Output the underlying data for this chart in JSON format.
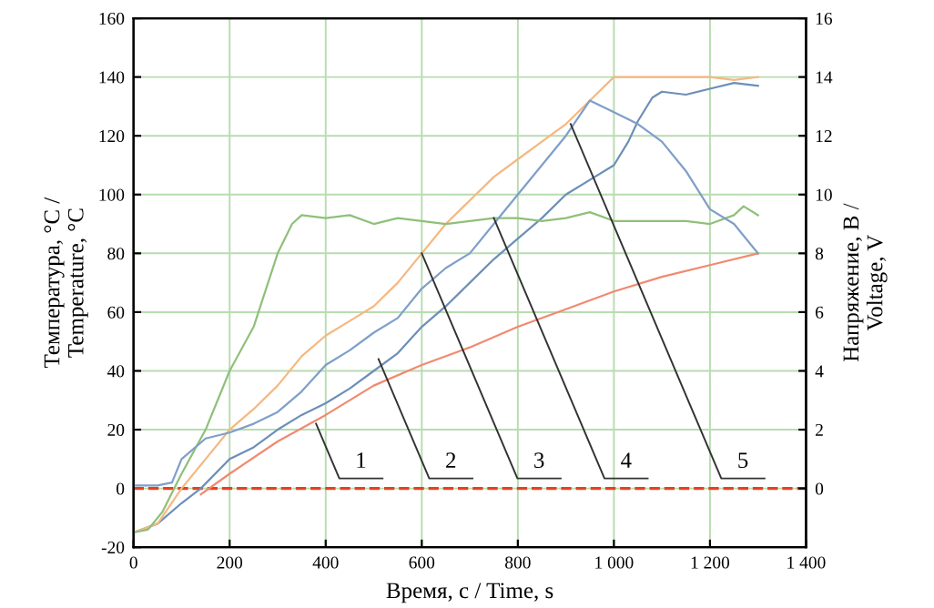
{
  "chart_data": {
    "type": "line",
    "xlabel": "Время, с / Time, s",
    "ylabel": "Температура, °C /\nTemperature, °C",
    "y2label": "Напряжение, В /\nVoltage, V",
    "xlim": [
      0,
      1400
    ],
    "xticks": [
      0,
      200,
      400,
      600,
      800,
      {
        "value": 1000,
        "label": "1 000"
      },
      {
        "value": 1200,
        "label": "1 200"
      },
      {
        "value": 1400,
        "label": "1 400"
      }
    ],
    "ylim": [
      -20,
      160
    ],
    "yticks": [
      -20,
      0,
      20,
      40,
      60,
      80,
      100,
      120,
      140,
      160
    ],
    "y2lim": [
      -2,
      16
    ],
    "y2ticks": [
      0,
      2,
      4,
      6,
      8,
      10,
      12,
      14,
      16
    ],
    "grid": true,
    "series": [
      {
        "color": "#f08a70",
        "x": [
          140,
          200,
          300,
          400,
          500,
          600,
          700,
          800,
          900,
          1000,
          1100,
          1200,
          1300
        ],
        "values": [
          -2,
          5,
          16,
          25,
          35,
          42,
          48,
          55,
          61,
          67,
          72,
          76,
          80
        ]
      },
      {
        "color": "#6d8fb8",
        "x": [
          0,
          50,
          100,
          140,
          200,
          250,
          300,
          350,
          400,
          450,
          500,
          550,
          600,
          650,
          700,
          750,
          800,
          850,
          900,
          950,
          1000,
          1030,
          1050,
          1080,
          1100,
          1150,
          1200,
          1250,
          1300
        ],
        "values": [
          -15,
          -12,
          -5,
          0,
          10,
          14,
          20,
          25,
          29,
          34,
          40,
          46,
          55,
          62,
          70,
          78,
          85,
          92,
          100,
          105,
          110,
          118,
          125,
          133,
          135,
          134,
          136,
          138,
          137
        ]
      },
      {
        "color": "#f5b880",
        "x": [
          0,
          50,
          100,
          150,
          200,
          250,
          300,
          350,
          400,
          450,
          500,
          550,
          600,
          650,
          700,
          750,
          800,
          850,
          900,
          950,
          1000,
          1050,
          1100,
          1150,
          1200,
          1250,
          1300
        ],
        "values": [
          -15,
          -12,
          0,
          10,
          20,
          27,
          35,
          45,
          52,
          57,
          62,
          70,
          80,
          90,
          98,
          106,
          112,
          118,
          124,
          132,
          140,
          140,
          140,
          140,
          140,
          139,
          140
        ]
      },
      {
        "color": "#8fc07a",
        "x": [
          0,
          30,
          60,
          100,
          150,
          200,
          250,
          300,
          330,
          350,
          400,
          450,
          500,
          550,
          600,
          650,
          700,
          750,
          800,
          850,
          900,
          950,
          1000,
          1050,
          1100,
          1150,
          1200,
          1250,
          1270,
          1300
        ],
        "values": [
          -15,
          -14,
          -8,
          5,
          20,
          40,
          55,
          80,
          90,
          93,
          92,
          93,
          90,
          92,
          91,
          90,
          91,
          92,
          92,
          91,
          92,
          94,
          91,
          91,
          91,
          91,
          90,
          93,
          96,
          93
        ]
      },
      {
        "color": "#7f9fc8",
        "x": [
          0,
          50,
          80,
          100,
          150,
          200,
          250,
          300,
          350,
          400,
          450,
          500,
          550,
          600,
          650,
          700,
          750,
          800,
          850,
          900,
          950,
          1000,
          1050,
          1100,
          1150,
          1200,
          1250,
          1300
        ],
        "values": [
          1,
          1,
          2,
          10,
          17,
          19,
          22,
          26,
          33,
          42,
          47,
          53,
          58,
          68,
          75,
          80,
          90,
          100,
          110,
          120,
          132,
          128,
          124,
          118,
          108,
          95,
          90,
          80
        ]
      }
    ],
    "ref_lines": [
      {
        "axis": "y",
        "value": 0,
        "color": "#e8401c",
        "line_style": "dashed"
      }
    ],
    "annotations": [
      {
        "text": "1",
        "x": 380,
        "y": 22
      },
      {
        "text": "2",
        "x": 510,
        "y": 44
      },
      {
        "text": "3",
        "x": 600,
        "y": 80
      },
      {
        "text": "4",
        "x": 750,
        "y": 92
      },
      {
        "text": "5",
        "x": 910,
        "y": 124
      }
    ]
  }
}
